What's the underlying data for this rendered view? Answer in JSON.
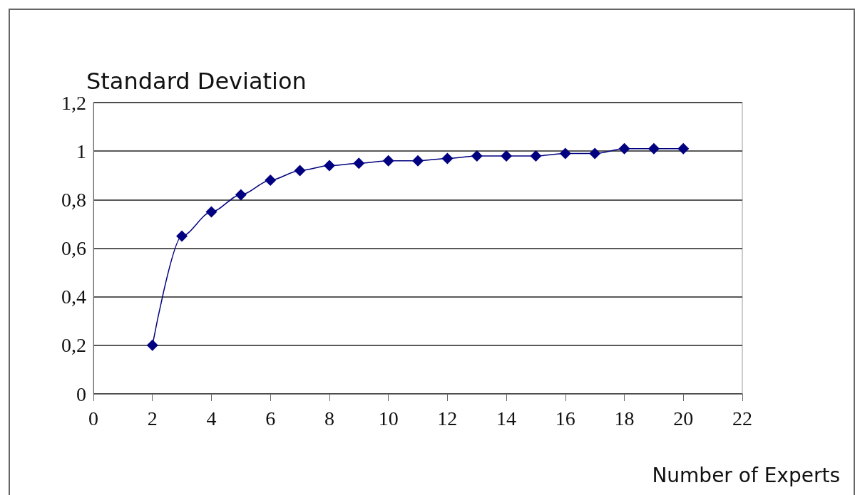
{
  "chart_data": {
    "type": "line",
    "ylabel": "Standard Deviation",
    "xlabel": "Number of Experts",
    "series": [
      {
        "color": "#000080",
        "x": [
          2,
          3,
          4,
          5,
          6,
          7,
          8,
          9,
          10,
          11,
          12,
          13,
          14,
          15,
          16,
          17,
          18,
          19,
          20
        ],
        "values": [
          0.2,
          0.65,
          0.75,
          0.82,
          0.88,
          0.92,
          0.94,
          0.95,
          0.96,
          0.96,
          0.97,
          0.98,
          0.98,
          0.98,
          0.99,
          0.99,
          1.01,
          1.01,
          1.01
        ]
      }
    ],
    "xlim": [
      0,
      22
    ],
    "xticks": [
      0,
      2,
      4,
      6,
      8,
      10,
      12,
      14,
      16,
      18,
      20,
      22
    ],
    "ylim": [
      0,
      1.2
    ],
    "yticks": [
      0,
      {
        "value": 0.2,
        "label": "0,2"
      },
      {
        "value": 0.4,
        "label": "0,4"
      },
      {
        "value": 0.6,
        "label": "0,6"
      },
      {
        "value": 0.8,
        "label": "0,8"
      },
      1,
      {
        "value": 1.2,
        "label": "1,2"
      }
    ],
    "grid": "y",
    "marker": "diamond",
    "line_style": "solid"
  }
}
